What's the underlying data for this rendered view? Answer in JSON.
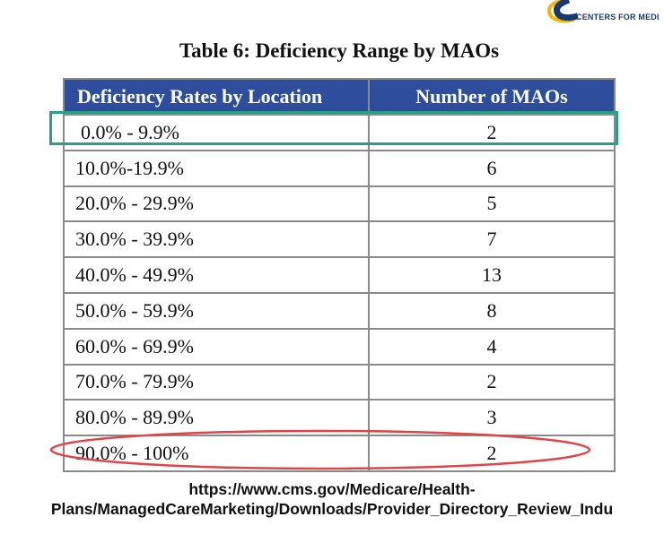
{
  "logo": {
    "text": "CENTERS FOR MEDI",
    "icon": "cms-logo-icon",
    "color": "#1a3a6e",
    "accent": "#f2b705"
  },
  "table": {
    "title": "Table 6: Deficiency Range by MAOs",
    "headers": [
      "Deficiency Rates by Location",
      "Number of MAOs"
    ],
    "header_color": "#2e4d9c",
    "rows": [
      {
        "range": "0.0% - 9.9%",
        "count": "2"
      },
      {
        "range": "10.0%-19.9%",
        "count": "6"
      },
      {
        "range": "20.0% - 29.9%",
        "count": "5"
      },
      {
        "range": "30.0% - 39.9%",
        "count": "7"
      },
      {
        "range": "40.0% - 49.9%",
        "count": "13"
      },
      {
        "range": "50.0% - 59.9%",
        "count": "8"
      },
      {
        "range": "60.0% - 69.9%",
        "count": "4"
      },
      {
        "range": "70.0% - 79.9%",
        "count": "2"
      },
      {
        "range": "80.0% - 89.9%",
        "count": "3"
      },
      {
        "range": "90.0% - 100%",
        "count": "2"
      }
    ]
  },
  "annotations": {
    "first_row_highlight_color": "#27a084",
    "last_row_circle_color": "#e04545"
  },
  "source": {
    "line1": "https://www.cms.gov/Medicare/Health-",
    "line2": "Plans/ManagedCareMarketing/Downloads/Provider_Directory_Review_Indu"
  }
}
